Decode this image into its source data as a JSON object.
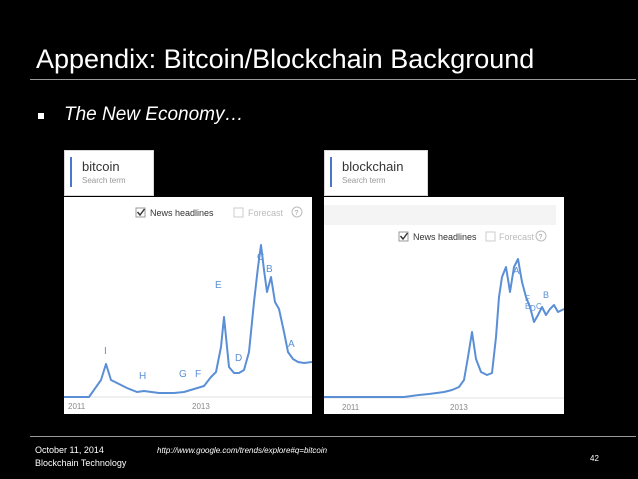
{
  "slide": {
    "title": "Appendix: Bitcoin/Blockchain Background",
    "bullet": "The New Economy…"
  },
  "charts": [
    {
      "search_term": "bitcoin",
      "search_sub": "Search term",
      "news_label": "News headlines",
      "forecast_label": "Forecast",
      "help_glyph": "?",
      "x_labels": [
        "2011",
        "2013"
      ],
      "markers": [
        "I",
        "H",
        "G",
        "F",
        "E",
        "D",
        "C",
        "B",
        "A"
      ],
      "line_color": "#5a8fd6"
    },
    {
      "search_term": "blockchain",
      "search_sub": "Search term",
      "news_label": "News headlines",
      "forecast_label": "Forecast",
      "help_glyph": "?",
      "x_labels": [
        "2011",
        "2013"
      ],
      "markers": [
        "A",
        "F",
        "E",
        "D",
        "C",
        "B"
      ],
      "line_color": "#5a8fd6"
    }
  ],
  "footer": {
    "date": "October 11, 2014",
    "org": "Blockchain Technology",
    "url": "http://www.google.com/trends/explore#q=bitcoin",
    "page": "42"
  }
}
